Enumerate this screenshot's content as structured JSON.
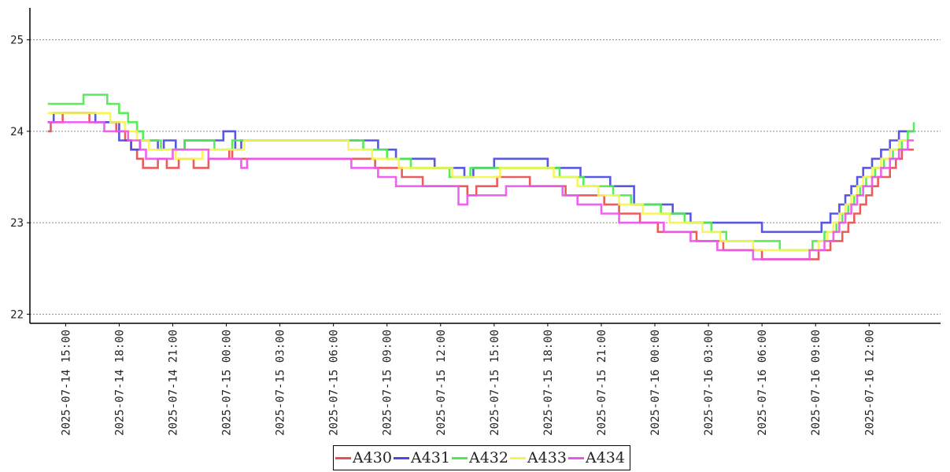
{
  "chart_data": {
    "type": "line",
    "title": "",
    "xlabel": "",
    "ylabel": "",
    "ylim": [
      21.9,
      25.35
    ],
    "xlim": [
      "2025-07-14 13:00",
      "2025-07-16 16:00"
    ],
    "grid": "horizontal dotted",
    "legend_position": "bottom-center",
    "x_ticks": [
      "2025-07-14 15:00",
      "2025-07-14 18:00",
      "2025-07-14 21:00",
      "2025-07-15 00:00",
      "2025-07-15 03:00",
      "2025-07-15 06:00",
      "2025-07-15 09:00",
      "2025-07-15 12:00",
      "2025-07-15 15:00",
      "2025-07-15 18:00",
      "2025-07-15 21:00",
      "2025-07-16 00:00",
      "2025-07-16 03:00",
      "2025-07-16 06:00",
      "2025-07-16 09:00",
      "2025-07-16 12:00"
    ],
    "y_ticks": [
      "22",
      "23",
      "24",
      "25"
    ],
    "series": [
      {
        "name": "A430",
        "color": "#e94f4f",
        "x": [
          "2025-07-14 14:00",
          "2025-07-14 14:10",
          "2025-07-14 14:50",
          "2025-07-14 16:20",
          "2025-07-14 17:50",
          "2025-07-14 18:20",
          "2025-07-14 18:40",
          "2025-07-14 19:00",
          "2025-07-14 19:20",
          "2025-07-14 20:10",
          "2025-07-14 20:40",
          "2025-07-14 21:20",
          "2025-07-14 22:10",
          "2025-07-14 23:00",
          "2025-07-15 00:10",
          "2025-07-15 00:20",
          "2025-07-15 00:40",
          "2025-07-15 07:00",
          "2025-07-15 08:20",
          "2025-07-15 08:40",
          "2025-07-15 09:50",
          "2025-07-15 11:00",
          "2025-07-15 13:00",
          "2025-07-15 13:30",
          "2025-07-15 14:00",
          "2025-07-15 15:10",
          "2025-07-15 17:00",
          "2025-07-15 18:20",
          "2025-07-15 19:00",
          "2025-07-15 20:10",
          "2025-07-15 21:10",
          "2025-07-15 22:00",
          "2025-07-15 23:10",
          "2025-07-16 00:10",
          "2025-07-16 01:20",
          "2025-07-16 02:20",
          "2025-07-16 03:50",
          "2025-07-16 04:50",
          "2025-07-16 06:00",
          "2025-07-16 07:20",
          "2025-07-16 08:40",
          "2025-07-16 09:10",
          "2025-07-16 09:30",
          "2025-07-16 09:50",
          "2025-07-16 10:10",
          "2025-07-16 10:30",
          "2025-07-16 10:50",
          "2025-07-16 11:10",
          "2025-07-16 11:30",
          "2025-07-16 11:50",
          "2025-07-16 12:10",
          "2025-07-16 12:30",
          "2025-07-16 12:50",
          "2025-07-16 13:10",
          "2025-07-16 13:30",
          "2025-07-16 13:50",
          "2025-07-16 14:10",
          "2025-07-16 14:30"
        ],
        "values": [
          24.0,
          24.1,
          24.2,
          24.1,
          24.0,
          23.9,
          23.8,
          23.7,
          23.6,
          23.7,
          23.6,
          23.7,
          23.6,
          23.7,
          23.8,
          23.7,
          23.7,
          23.7,
          23.6,
          23.6,
          23.5,
          23.4,
          23.4,
          23.3,
          23.4,
          23.5,
          23.4,
          23.4,
          23.3,
          23.3,
          23.2,
          23.1,
          23.0,
          22.9,
          22.9,
          22.8,
          22.7,
          22.7,
          22.6,
          22.6,
          22.6,
          22.7,
          22.7,
          22.8,
          22.8,
          22.9,
          23.0,
          23.1,
          23.2,
          23.3,
          23.4,
          23.5,
          23.5,
          23.6,
          23.7,
          23.8,
          23.8,
          23.8
        ]
      },
      {
        "name": "A431",
        "color": "#4a4ae0",
        "x": [
          "2025-07-14 14:00",
          "2025-07-14 14:20",
          "2025-07-14 15:10",
          "2025-07-14 16:40",
          "2025-07-14 18:00",
          "2025-07-14 18:40",
          "2025-07-14 19:10",
          "2025-07-14 20:10",
          "2025-07-14 20:30",
          "2025-07-14 21:10",
          "2025-07-14 21:40",
          "2025-07-14 22:20",
          "2025-07-14 23:50",
          "2025-07-15 00:30",
          "2025-07-15 00:50",
          "2025-07-15 07:30",
          "2025-07-15 08:30",
          "2025-07-15 09:30",
          "2025-07-15 11:40",
          "2025-07-15 12:20",
          "2025-07-15 13:20",
          "2025-07-15 13:50",
          "2025-07-15 15:00",
          "2025-07-15 18:00",
          "2025-07-15 18:20",
          "2025-07-15 19:50",
          "2025-07-15 21:30",
          "2025-07-15 22:50",
          "2025-07-16 01:00",
          "2025-07-16 02:00",
          "2025-07-16 03:00",
          "2025-07-16 06:00",
          "2025-07-16 08:30",
          "2025-07-16 09:20",
          "2025-07-16 09:50",
          "2025-07-16 10:20",
          "2025-07-16 10:40",
          "2025-07-16 11:00",
          "2025-07-16 11:20",
          "2025-07-16 11:40",
          "2025-07-16 12:10",
          "2025-07-16 12:40",
          "2025-07-16 13:10",
          "2025-07-16 13:40",
          "2025-07-16 14:10",
          "2025-07-16 14:30"
        ],
        "values": [
          24.1,
          24.2,
          24.2,
          24.1,
          23.9,
          23.8,
          23.9,
          23.8,
          23.9,
          23.8,
          23.9,
          23.9,
          24.0,
          23.8,
          23.9,
          23.9,
          23.8,
          23.7,
          23.6,
          23.6,
          23.5,
          23.6,
          23.7,
          23.6,
          23.6,
          23.5,
          23.4,
          23.2,
          23.1,
          23.0,
          23.0,
          22.9,
          22.9,
          23.0,
          23.1,
          23.2,
          23.3,
          23.4,
          23.5,
          23.6,
          23.7,
          23.8,
          23.9,
          24.0,
          24.0,
          24.0
        ]
      },
      {
        "name": "A432",
        "color": "#4cec4c",
        "x": [
          "2025-07-14 14:00",
          "2025-07-14 15:00",
          "2025-07-14 16:00",
          "2025-07-14 17:20",
          "2025-07-14 18:00",
          "2025-07-14 18:30",
          "2025-07-14 19:00",
          "2025-07-14 19:20",
          "2025-07-14 20:20",
          "2025-07-14 21:40",
          "2025-07-14 23:20",
          "2025-07-15 00:20",
          "2025-07-15 00:50",
          "2025-07-15 07:40",
          "2025-07-15 09:00",
          "2025-07-15 10:20",
          "2025-07-15 12:30",
          "2025-07-15 13:00",
          "2025-07-15 13:40",
          "2025-07-15 14:50",
          "2025-07-15 18:40",
          "2025-07-15 20:00",
          "2025-07-15 21:40",
          "2025-07-15 22:40",
          "2025-07-16 00:20",
          "2025-07-16 01:40",
          "2025-07-16 03:10",
          "2025-07-16 04:00",
          "2025-07-16 07:00",
          "2025-07-16 08:50",
          "2025-07-16 09:30",
          "2025-07-16 10:10",
          "2025-07-16 10:30",
          "2025-07-16 10:50",
          "2025-07-16 11:10",
          "2025-07-16 11:30",
          "2025-07-16 11:50",
          "2025-07-16 12:20",
          "2025-07-16 12:50",
          "2025-07-16 13:20",
          "2025-07-16 13:50",
          "2025-07-16 14:10",
          "2025-07-16 14:30"
        ],
        "values": [
          24.3,
          24.3,
          24.4,
          24.3,
          24.2,
          24.1,
          24.0,
          23.9,
          23.8,
          23.9,
          23.8,
          23.9,
          23.9,
          23.8,
          23.7,
          23.6,
          23.5,
          23.5,
          23.6,
          23.6,
          23.5,
          23.4,
          23.3,
          23.2,
          23.1,
          23.0,
          22.9,
          22.8,
          22.7,
          22.8,
          22.9,
          23.0,
          23.1,
          23.2,
          23.3,
          23.4,
          23.5,
          23.6,
          23.7,
          23.8,
          23.9,
          24.0,
          24.1
        ]
      },
      {
        "name": "A433",
        "color": "#f5f550",
        "x": [
          "2025-07-14 14:00",
          "2025-07-14 15:30",
          "2025-07-14 17:30",
          "2025-07-14 18:20",
          "2025-07-14 19:00",
          "2025-07-14 19:40",
          "2025-07-14 21:10",
          "2025-07-14 22:40",
          "2025-07-15 00:40",
          "2025-07-15 01:00",
          "2025-07-15 06:50",
          "2025-07-15 08:10",
          "2025-07-15 09:40",
          "2025-07-15 12:40",
          "2025-07-15 13:40",
          "2025-07-15 15:20",
          "2025-07-15 18:20",
          "2025-07-15 19:40",
          "2025-07-15 20:50",
          "2025-07-15 22:00",
          "2025-07-15 23:20",
          "2025-07-16 00:50",
          "2025-07-16 02:40",
          "2025-07-16 03:40",
          "2025-07-16 05:30",
          "2025-07-16 08:20",
          "2025-07-16 09:10",
          "2025-07-16 09:40",
          "2025-07-16 10:00",
          "2025-07-16 10:20",
          "2025-07-16 10:40",
          "2025-07-16 11:00",
          "2025-07-16 11:20",
          "2025-07-16 11:40",
          "2025-07-16 12:10",
          "2025-07-16 12:40",
          "2025-07-16 13:10",
          "2025-07-16 13:40",
          "2025-07-16 14:10",
          "2025-07-16 14:30"
        ],
        "values": [
          24.2,
          24.2,
          24.1,
          24.0,
          23.9,
          23.8,
          23.7,
          23.8,
          23.8,
          23.9,
          23.8,
          23.7,
          23.6,
          23.5,
          23.5,
          23.6,
          23.5,
          23.4,
          23.3,
          23.2,
          23.1,
          23.0,
          22.9,
          22.8,
          22.7,
          22.7,
          22.8,
          22.9,
          23.0,
          23.1,
          23.2,
          23.3,
          23.4,
          23.5,
          23.6,
          23.7,
          23.8,
          23.9,
          23.9,
          23.9
        ]
      },
      {
        "name": "A434",
        "color": "#ee55ee",
        "x": [
          "2025-07-14 14:00",
          "2025-07-14 15:20",
          "2025-07-14 17:10",
          "2025-07-14 18:30",
          "2025-07-14 19:10",
          "2025-07-14 19:30",
          "2025-07-14 21:00",
          "2025-07-14 23:00",
          "2025-07-15 00:50",
          "2025-07-15 01:10",
          "2025-07-15 07:00",
          "2025-07-15 08:30",
          "2025-07-15 09:30",
          "2025-07-15 11:50",
          "2025-07-15 13:00",
          "2025-07-15 13:30",
          "2025-07-15 15:40",
          "2025-07-15 18:50",
          "2025-07-15 19:40",
          "2025-07-15 21:00",
          "2025-07-15 22:00",
          "2025-07-15 23:00",
          "2025-07-16 00:30",
          "2025-07-16 02:00",
          "2025-07-16 03:30",
          "2025-07-16 05:30",
          "2025-07-16 08:40",
          "2025-07-16 09:30",
          "2025-07-16 10:00",
          "2025-07-16 10:20",
          "2025-07-16 10:40",
          "2025-07-16 11:00",
          "2025-07-16 11:20",
          "2025-07-16 11:40",
          "2025-07-16 12:10",
          "2025-07-16 12:40",
          "2025-07-16 13:10",
          "2025-07-16 13:40",
          "2025-07-16 14:10",
          "2025-07-16 14:30"
        ],
        "values": [
          24.1,
          24.1,
          24.0,
          23.9,
          23.8,
          23.7,
          23.8,
          23.7,
          23.6,
          23.7,
          23.6,
          23.5,
          23.4,
          23.4,
          23.2,
          23.3,
          23.4,
          23.3,
          23.2,
          23.1,
          23.0,
          23.0,
          22.9,
          22.8,
          22.7,
          22.6,
          22.7,
          22.8,
          22.9,
          23.0,
          23.1,
          23.2,
          23.3,
          23.4,
          23.5,
          23.6,
          23.7,
          23.8,
          23.9,
          23.9
        ]
      }
    ]
  }
}
